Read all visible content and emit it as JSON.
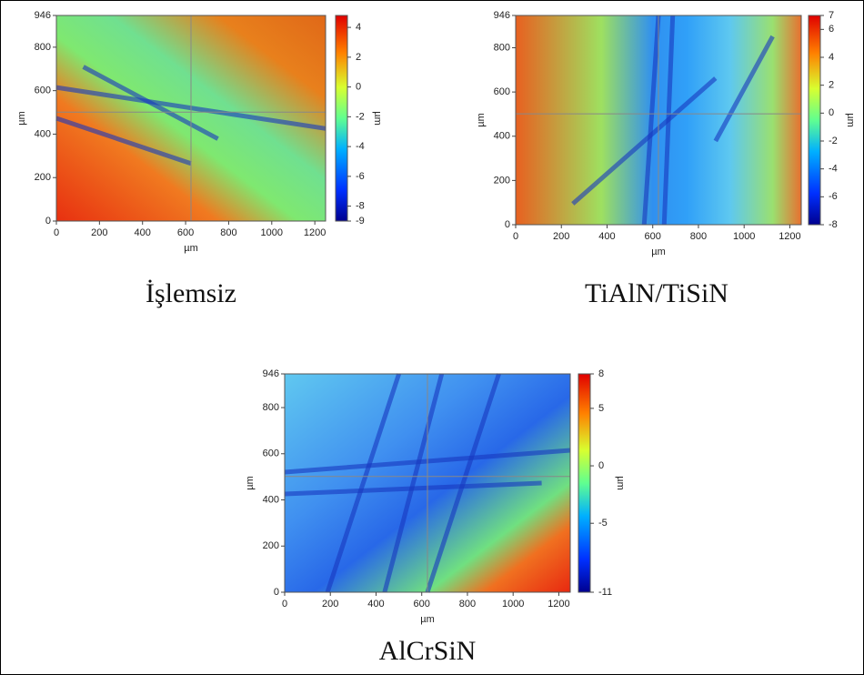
{
  "chart_data": [
    {
      "type": "heatmap",
      "caption": "İşlemsiz",
      "x_label": "µm",
      "y_label": "µm",
      "colorbar_label": "µm",
      "xlim": [
        0,
        1250
      ],
      "xticks": [
        0,
        200,
        400,
        600,
        800,
        1000,
        1200
      ],
      "ylim": [
        0,
        946
      ],
      "yticks": [
        0,
        200,
        400,
        600,
        800,
        946
      ],
      "clim": [
        -9,
        4.8
      ],
      "cticks": [
        4,
        2,
        0,
        -2,
        -4,
        -6,
        -8,
        -9
      ]
    },
    {
      "type": "heatmap",
      "caption": "TiAlN/TiSiN",
      "x_label": "µm",
      "y_label": "µm",
      "colorbar_label": "µm",
      "xlim": [
        0,
        1250
      ],
      "xticks": [
        0,
        200,
        400,
        600,
        800,
        1000,
        1200
      ],
      "ylim": [
        0,
        946
      ],
      "yticks": [
        0,
        200,
        400,
        600,
        800,
        946
      ],
      "clim": [
        -8,
        7
      ],
      "cticks": [
        7,
        6,
        4,
        2,
        0,
        -2,
        -4,
        -6,
        -8
      ]
    },
    {
      "type": "heatmap",
      "caption": "AlCrSiN",
      "x_label": "µm",
      "y_label": "µm",
      "colorbar_label": "µm",
      "xlim": [
        0,
        1250
      ],
      "xticks": [
        0,
        200,
        400,
        600,
        800,
        1000,
        1200
      ],
      "ylim": [
        0,
        946
      ],
      "yticks": [
        0,
        200,
        400,
        600,
        800,
        946
      ],
      "clim": [
        -11,
        8
      ],
      "cticks": [
        8,
        5,
        0,
        -5,
        -11
      ]
    }
  ]
}
